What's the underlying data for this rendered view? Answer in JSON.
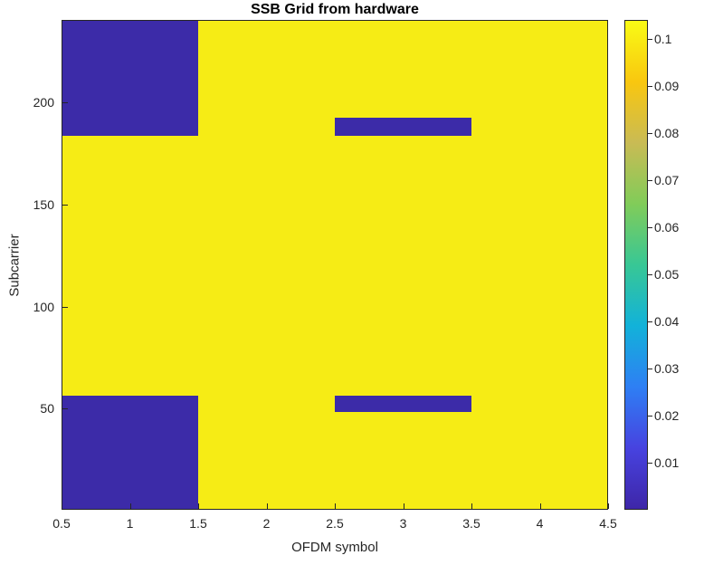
{
  "chart_data": {
    "type": "heatmap",
    "title": "SSB Grid from hardware",
    "xlabel": "OFDM symbol",
    "ylabel": "Subcarrier",
    "xlim": [
      0.5,
      4.5
    ],
    "ylim": [
      0.5,
      240.5
    ],
    "xticks": [
      0.5,
      1,
      1.5,
      2,
      2.5,
      3,
      3.5,
      4,
      4.5
    ],
    "yticks": [
      50,
      100,
      150,
      200
    ],
    "n_ofdm_symbols": 4,
    "n_subcarriers": 240,
    "fill_value": 0.1,
    "zero_value": 0,
    "zero_regions": [
      {
        "ofdm_symbol": 1,
        "subcarrier_range": [
          1,
          56
        ]
      },
      {
        "ofdm_symbol": 1,
        "subcarrier_range": [
          184,
          240
        ]
      },
      {
        "ofdm_symbol": 3,
        "subcarrier_range": [
          49,
          56
        ]
      },
      {
        "ofdm_symbol": 3,
        "subcarrier_range": [
          184,
          192
        ]
      }
    ],
    "grid": "off",
    "legend": "none",
    "colormap": "parula",
    "colorbar": {
      "position": "right",
      "ticks": [
        0.01,
        0.02,
        0.03,
        0.04,
        0.05,
        0.06,
        0.07,
        0.08,
        0.09,
        0.1
      ],
      "clim": [
        0,
        0.104
      ]
    },
    "colors": {
      "high": "#f6ec15",
      "low": "#3c2ba8",
      "axis": "#262626",
      "title_text": "#000000",
      "background": "#ffffff",
      "parula_stops": [
        "#3e26a8",
        "#4743e0",
        "#2e7ff4",
        "#12b2d9",
        "#38c795",
        "#81cc59",
        "#c9bb54",
        "#f9c70f",
        "#f9fb15"
      ]
    }
  }
}
